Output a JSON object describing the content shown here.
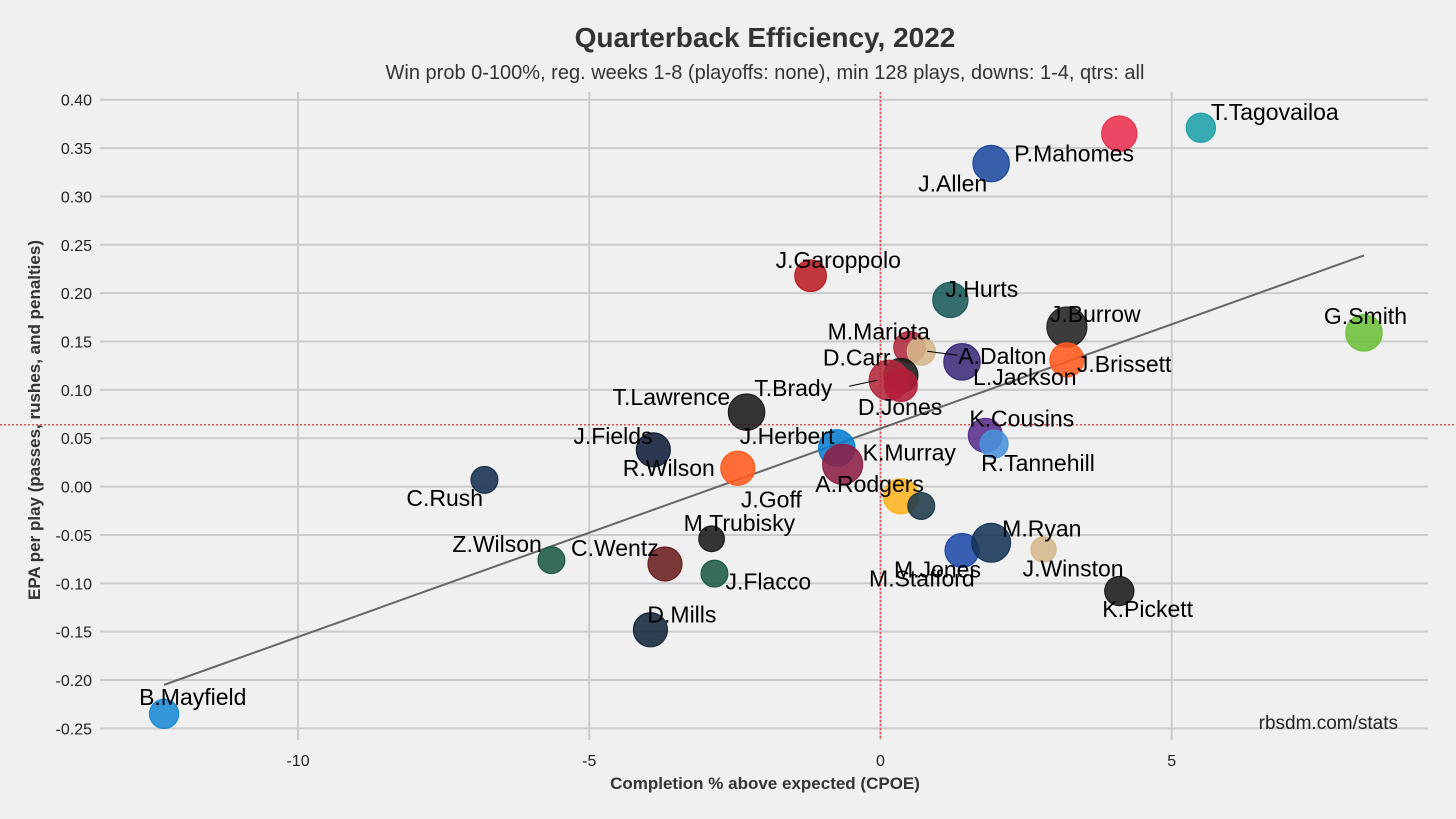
{
  "chart_data": {
    "type": "scatter",
    "title": "Quarterback Efficiency, 2022",
    "subtitle": "Win prob 0-100%, reg. weeks 1-8 (playoffs: none), min 128 plays, downs: 1-4, qtrs: all",
    "xlabel": "Completion % above expected (CPOE)",
    "ylabel": "EPA per play (passes, rushes, and penalties)",
    "caption": "rbsdm.com/stats",
    "xlim": [
      -13.4,
      9.4
    ],
    "ylim": [
      -0.262,
      0.408
    ],
    "x_ticks": [
      -10,
      -5,
      0,
      5
    ],
    "x_tick_labels": [
      "-10",
      "-5",
      "0",
      "5"
    ],
    "y_ticks": [
      0.4,
      0.35,
      0.3,
      0.25,
      0.2,
      0.15,
      0.1,
      0.05,
      0.0,
      -0.05,
      -0.1,
      -0.15,
      -0.2,
      -0.25
    ],
    "y_tick_labels": [
      "0.40",
      "0.35",
      "0.30",
      "0.25",
      "0.20",
      "0.15",
      "0.10",
      "0.05",
      "0.00",
      "-0.05",
      "-0.10",
      "-0.15",
      "-0.20",
      "-0.25"
    ],
    "grid": true,
    "reference_lines": {
      "mean_x": 0.0,
      "mean_y": 0.064,
      "color": "#e05050"
    },
    "trend_line": {
      "x": [
        -12.3,
        8.3
      ],
      "y": [
        -0.205,
        0.239
      ],
      "color": "#666666"
    },
    "points": [
      {
        "name": "T.Tagovailoa",
        "x": 5.5,
        "y": 0.371,
        "size": 0.55,
        "color": "#1ea0a8"
      },
      {
        "name": "P.Mahomes",
        "x": 4.1,
        "y": 0.365,
        "size": 0.8,
        "color": "#e8304f"
      },
      {
        "name": "J.Allen",
        "x": 1.9,
        "y": 0.334,
        "size": 0.85,
        "color": "#1e4a9e"
      },
      {
        "name": "J.Garoppolo",
        "x": -1.2,
        "y": 0.218,
        "size": 0.65,
        "color": "#b81c22"
      },
      {
        "name": "J.Hurts",
        "x": 1.2,
        "y": 0.193,
        "size": 0.8,
        "color": "#1a5a5a"
      },
      {
        "name": "J.Burrow",
        "x": 3.2,
        "y": 0.165,
        "size": 1.0,
        "color": "#222222"
      },
      {
        "name": "G.Smith",
        "x": 8.3,
        "y": 0.159,
        "size": 0.85,
        "color": "#6cc03a"
      },
      {
        "name": "M.Mariota",
        "x": 0.5,
        "y": 0.144,
        "size": 0.65,
        "color": "#b02a3e"
      },
      {
        "name": "A.Dalton",
        "x": 0.7,
        "y": 0.14,
        "size": 0.5,
        "color": "#d4b78a"
      },
      {
        "name": "J.Brissett",
        "x": 3.2,
        "y": 0.131,
        "size": 0.75,
        "color": "#ff5a1e"
      },
      {
        "name": "L.Jackson",
        "x": 1.4,
        "y": 0.129,
        "size": 0.85,
        "color": "#3c2a7a"
      },
      {
        "name": "D.Carr",
        "x": 0.35,
        "y": 0.115,
        "size": 0.75,
        "color": "#1a1a1a"
      },
      {
        "name": "T.Brady",
        "x": 0.15,
        "y": 0.11,
        "size": 1.0,
        "color": "#b4283c"
      },
      {
        "name": "D.Jones",
        "x": 0.35,
        "y": 0.105,
        "size": 0.7,
        "color": "#b41e3a"
      },
      {
        "name": "T.Lawrence",
        "x": -2.3,
        "y": 0.077,
        "size": 0.85,
        "color": "#1a1a1a"
      },
      {
        "name": "K.Cousins",
        "x": 1.8,
        "y": 0.053,
        "size": 0.75,
        "color": "#5a2e8c"
      },
      {
        "name": "R.Tannehill",
        "x": 1.95,
        "y": 0.044,
        "size": 0.5,
        "color": "#4a92db"
      },
      {
        "name": "J.Herbert",
        "x": -0.75,
        "y": 0.04,
        "size": 0.85,
        "color": "#0a7ed0"
      },
      {
        "name": "J.Fields",
        "x": -3.9,
        "y": 0.038,
        "size": 0.75,
        "color": "#0f1e38"
      },
      {
        "name": "K.Murray",
        "x": -0.65,
        "y": 0.023,
        "size": 1.0,
        "color": "#8c1e44"
      },
      {
        "name": "R.Wilson",
        "x": -2.45,
        "y": 0.019,
        "size": 0.75,
        "color": "#ff5a1e"
      },
      {
        "name": "C.Rush",
        "x": -6.8,
        "y": 0.007,
        "size": 0.45,
        "color": "#15304e"
      },
      {
        "name": "J.Goff",
        "x": 0.35,
        "y": -0.01,
        "size": 0.8,
        "color": "#ffb420"
      },
      {
        "name": "A.Rodgers",
        "x": 0.7,
        "y": -0.02,
        "size": 0.45,
        "color": "#1e3a4a"
      },
      {
        "name": "M.Trubisky",
        "x": -2.9,
        "y": -0.054,
        "size": 0.4,
        "color": "#1a1a1a"
      },
      {
        "name": "M.Jones",
        "x": 1.4,
        "y": -0.066,
        "size": 0.75,
        "color": "#1e4aa8"
      },
      {
        "name": "M.Ryan",
        "x": 1.9,
        "y": -0.058,
        "size": 0.95,
        "color": "#163458"
      },
      {
        "name": "J.Winston",
        "x": 2.8,
        "y": -0.065,
        "size": 0.38,
        "color": "#d4b78a"
      },
      {
        "name": "Z.Wilson",
        "x": -5.65,
        "y": -0.076,
        "size": 0.45,
        "color": "#1e5a44"
      },
      {
        "name": "C.Wentz",
        "x": -3.7,
        "y": -0.08,
        "size": 0.75,
        "color": "#6a1e1e"
      },
      {
        "name": "J.Flacco",
        "x": -2.85,
        "y": -0.09,
        "size": 0.45,
        "color": "#1e5a44"
      },
      {
        "name": "K.Pickett",
        "x": 4.1,
        "y": -0.108,
        "size": 0.55,
        "color": "#1a1a1a"
      },
      {
        "name": "D.Mills",
        "x": -3.95,
        "y": -0.148,
        "size": 0.75,
        "color": "#15253a"
      },
      {
        "name": "M.Stafford",
        "x": 1.4,
        "y": -0.066,
        "size": 0.75,
        "color": "#1e4aa8",
        "hidden_marker": true
      },
      {
        "name": "B.Mayfield",
        "x": -12.3,
        "y": -0.235,
        "size": 0.55,
        "color": "#1a8ad4"
      }
    ]
  }
}
